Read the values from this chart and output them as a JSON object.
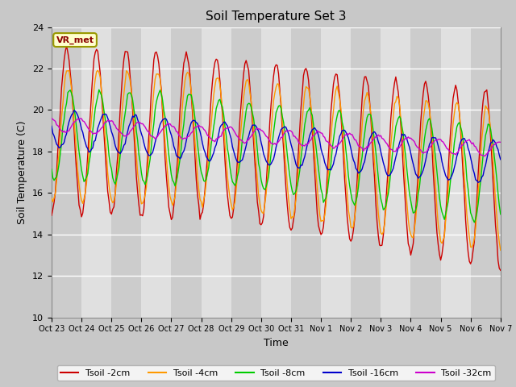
{
  "title": "Soil Temperature Set 3",
  "xlabel": "Time",
  "ylabel": "Soil Temperature (C)",
  "ylim": [
    10,
    24
  ],
  "yticks": [
    10,
    12,
    14,
    16,
    18,
    20,
    22,
    24
  ],
  "colors": {
    "Tsoil -2cm": "#cc0000",
    "Tsoil -4cm": "#ff9900",
    "Tsoil -8cm": "#00cc00",
    "Tsoil -16cm": "#0000cc",
    "Tsoil -32cm": "#cc00cc"
  },
  "annotation_text": "VR_met",
  "n_days": 15,
  "date_labels": [
    "Oct 23",
    "Oct 24",
    "Oct 25",
    "Oct 26",
    "Oct 27",
    "Oct 28",
    "Oct 29",
    "Oct 30",
    "Oct 31",
    "Nov 1",
    "Nov 2",
    "Nov 3",
    "Nov 4",
    "Nov 5",
    "Nov 6",
    "Nov 7"
  ],
  "figsize": [
    6.4,
    4.8
  ],
  "dpi": 100
}
